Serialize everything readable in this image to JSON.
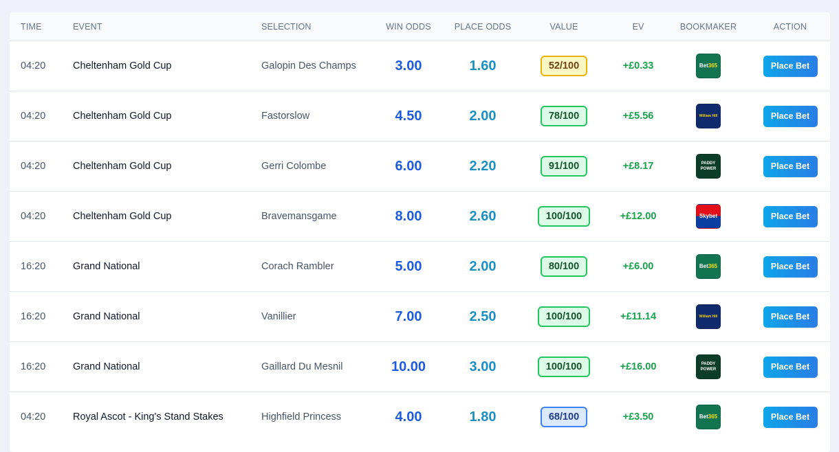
{
  "columns": {
    "time": "TIME",
    "event": "EVENT",
    "selection": "SELECTION",
    "win_odds": "WIN ODDS",
    "place_odds": "PLACE ODDS",
    "value": "VALUE",
    "ev": "EV",
    "bookmaker": "BOOKMAKER",
    "action": "ACTION"
  },
  "button_label": "Place Bet",
  "bookmakers": {
    "bet365": {
      "text_a": "Bet",
      "text_b": "365",
      "colors": {
        "bg": "#127451",
        "accent": "#f5e10a"
      }
    },
    "williamhill": {
      "text": "William Hill",
      "colors": {
        "bg": "#102a6b",
        "fg": "#f5d40a"
      }
    },
    "paddypower": {
      "line1": "PADDY",
      "line2": "POWER",
      "colors": {
        "bg": "#0b3d2a",
        "fg": "#ffffff"
      }
    },
    "skybet": {
      "text": "Skybet",
      "colors": {
        "top": "#e3101b",
        "bottom": "#0a3ea3"
      }
    }
  },
  "rows": [
    {
      "time": "04:20",
      "event": "Cheltenham Gold Cup",
      "selection": "Galopin Des Champs",
      "win_odds": "3.00",
      "place_odds": "1.60",
      "value": "52/100",
      "value_tone": "yellow",
      "ev": "+£0.33",
      "bookmaker": "bet365"
    },
    {
      "time": "04:20",
      "event": "Cheltenham Gold Cup",
      "selection": "Fastorslow",
      "win_odds": "4.50",
      "place_odds": "2.00",
      "value": "78/100",
      "value_tone": "green",
      "ev": "+£5.56",
      "bookmaker": "williamhill"
    },
    {
      "time": "04:20",
      "event": "Cheltenham Gold Cup",
      "selection": "Gerri Colombe",
      "win_odds": "6.00",
      "place_odds": "2.20",
      "value": "91/100",
      "value_tone": "green",
      "ev": "+£8.17",
      "bookmaker": "paddypower"
    },
    {
      "time": "04:20",
      "event": "Cheltenham Gold Cup",
      "selection": "Bravemansgame",
      "win_odds": "8.00",
      "place_odds": "2.60",
      "value": "100/100",
      "value_tone": "green",
      "ev": "+£12.00",
      "bookmaker": "skybet"
    },
    {
      "time": "16:20",
      "event": "Grand National",
      "selection": "Corach Rambler",
      "win_odds": "5.00",
      "place_odds": "2.00",
      "value": "80/100",
      "value_tone": "green",
      "ev": "+£6.00",
      "bookmaker": "bet365"
    },
    {
      "time": "16:20",
      "event": "Grand National",
      "selection": "Vanillier",
      "win_odds": "7.00",
      "place_odds": "2.50",
      "value": "100/100",
      "value_tone": "green",
      "ev": "+£11.14",
      "bookmaker": "williamhill"
    },
    {
      "time": "16:20",
      "event": "Grand National",
      "selection": "Gaillard Du Mesnil",
      "win_odds": "10.00",
      "place_odds": "3.00",
      "value": "100/100",
      "value_tone": "green",
      "ev": "+£16.00",
      "bookmaker": "paddypower"
    },
    {
      "time": "04:20",
      "event": "Royal Ascot - King's Stand Stakes",
      "selection": "Highfield Princess",
      "win_odds": "4.00",
      "place_odds": "1.80",
      "value": "68/100",
      "value_tone": "blue",
      "ev": "+£3.50",
      "bookmaker": "bet365"
    }
  ]
}
